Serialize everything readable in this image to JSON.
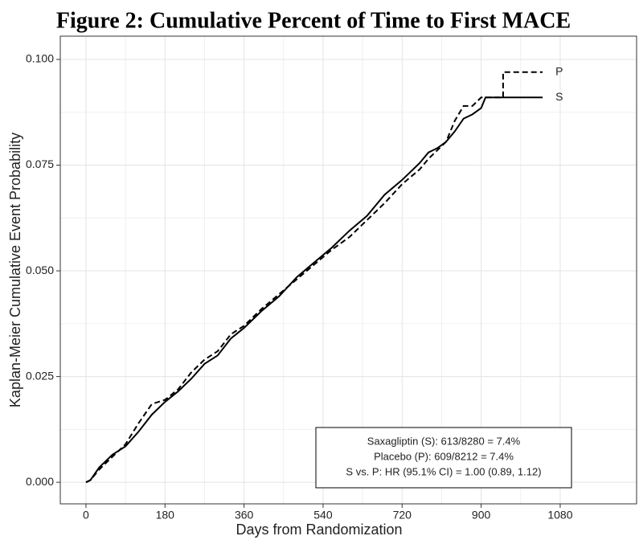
{
  "chart_data": {
    "type": "line",
    "title": "Figure 2: Cumulative Percent of Time to First MACE",
    "x_label": "Days from Randomization",
    "y_label": "Kaplan-Meier Cumulative Event Probability",
    "xlim": [
      -58.5,
      1254
    ],
    "ylim": [
      -0.0051,
      0.1055
    ],
    "xticks": [
      0,
      180,
      360,
      540,
      720,
      900,
      1080
    ],
    "yticks": [
      {
        "value": 0,
        "label": "0.000"
      },
      {
        "value": 0.025,
        "label": "0.025"
      },
      {
        "value": 0.05,
        "label": "0.050"
      },
      {
        "value": 0.075,
        "label": "0.075"
      },
      {
        "value": 0.1,
        "label": "0.100"
      }
    ],
    "grid": true,
    "series": [
      {
        "name": "P",
        "color": "#000000",
        "dash": true,
        "x": [
          0,
          10,
          30,
          60,
          90,
          120,
          150,
          180,
          210,
          240,
          270,
          300,
          330,
          360,
          400,
          440,
          480,
          520,
          560,
          600,
          640,
          680,
          720,
          760,
          780,
          800,
          820,
          840,
          860,
          880,
          900,
          950,
          950,
          1040
        ],
        "values": [
          0,
          0.0005,
          0.003,
          0.006,
          0.009,
          0.014,
          0.0185,
          0.0195,
          0.022,
          0.026,
          0.029,
          0.031,
          0.035,
          0.037,
          0.041,
          0.0445,
          0.048,
          0.0515,
          0.055,
          0.058,
          0.062,
          0.066,
          0.0705,
          0.074,
          0.0765,
          0.0785,
          0.0805,
          0.0855,
          0.089,
          0.089,
          0.091,
          0.091,
          0.097,
          0.097
        ]
      },
      {
        "name": "S",
        "color": "#000000",
        "dash": false,
        "x": [
          0,
          10,
          30,
          60,
          90,
          120,
          150,
          180,
          210,
          240,
          270,
          300,
          330,
          360,
          400,
          440,
          480,
          520,
          560,
          600,
          640,
          680,
          720,
          760,
          780,
          800,
          820,
          840,
          860,
          880,
          900,
          910,
          1040
        ],
        "values": [
          0,
          0.0005,
          0.0035,
          0.0065,
          0.0085,
          0.012,
          0.016,
          0.019,
          0.0215,
          0.0245,
          0.028,
          0.03,
          0.034,
          0.0365,
          0.0405,
          0.044,
          0.0485,
          0.052,
          0.0555,
          0.0595,
          0.063,
          0.068,
          0.0715,
          0.0755,
          0.078,
          0.079,
          0.0805,
          0.083,
          0.086,
          0.087,
          0.0885,
          0.091,
          0.091
        ]
      }
    ],
    "annotations": [
      "Saxagliptin (S): 613/8280 = 7.4%",
      "Placebo (P): 609/8212 = 7.4%",
      "S vs. P: HR (95.1% CI) = 1.00 (0.89, 1.12)"
    ]
  }
}
